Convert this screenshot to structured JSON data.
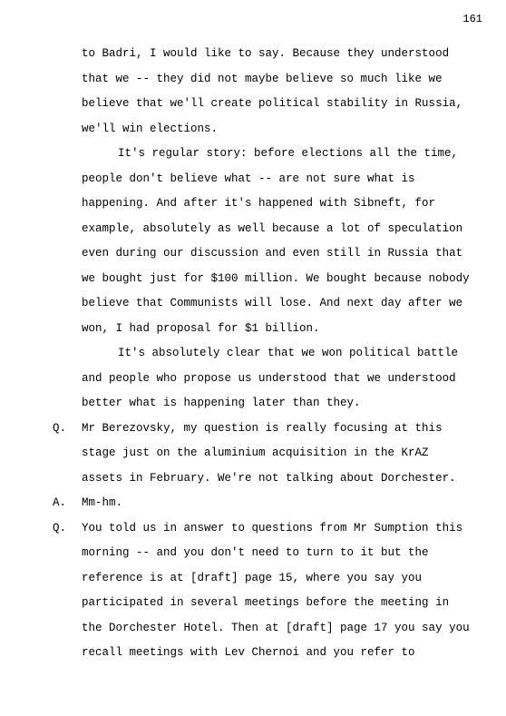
{
  "page_number": "161",
  "font_family": "Courier New",
  "font_size_pt": 9,
  "text_color": "#000000",
  "background_color": "#ffffff",
  "paragraphs": [
    {
      "type": "cont",
      "text": "to Badri, I would like to say.  Because they understood that we -- they did not maybe believe so much like we believe that we'll create political stability in Russia, we'll win elections."
    },
    {
      "type": "body",
      "text": "It's regular story: before elections all the time, people don't believe what -- are not sure what is happening.  And after it's happened with Sibneft, for example, absolutely as well because a lot of speculation even during our discussion and even still in Russia that we bought just for $100 million.  We bought because nobody believe that Communists will lose.  And next day after we won, I had proposal for $1 billion."
    },
    {
      "type": "body",
      "text": "It's absolutely clear that we won political battle and people who propose us understood that we understood better what is happening later than they."
    },
    {
      "type": "qa",
      "speaker": "Q.",
      "text": "Mr Berezovsky, my question is really focusing at this stage just on the aluminium acquisition in the KrAZ assets in February.  We're not talking about Dorchester."
    },
    {
      "type": "qa",
      "speaker": "A.",
      "text": "Mm-hm."
    },
    {
      "type": "qa",
      "speaker": "Q.",
      "text": "You told us in answer to questions from Mr Sumption this morning -- and you don't need to turn to it but the reference is at [draft] page 15, where you say you participated in several meetings before the meeting in the Dorchester Hotel.  Then at [draft] page 17 you say you recall meetings with Lev Chernoi and you refer to"
    }
  ]
}
